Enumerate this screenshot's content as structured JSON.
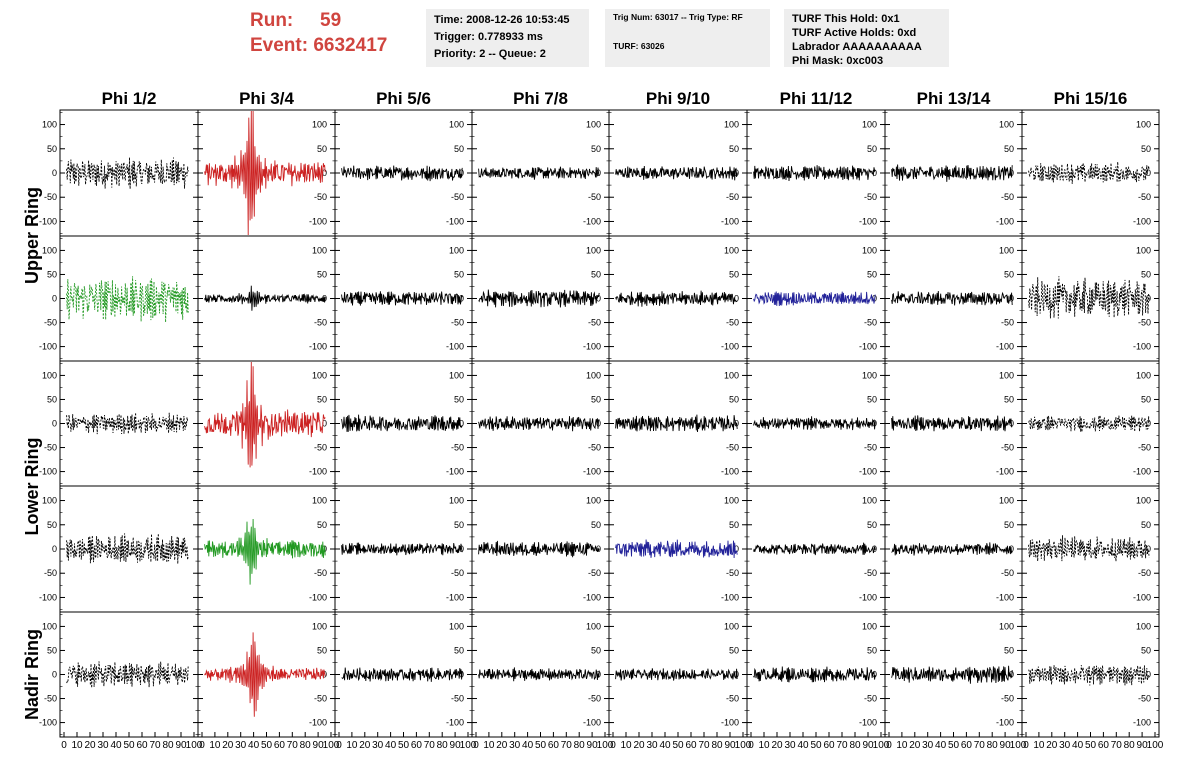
{
  "header": {
    "run_label": "Run:",
    "run_value": "59",
    "event_label": "Event:",
    "event_value": "6632417"
  },
  "info_box_1": {
    "time": "Time: 2008-12-26 10:53:45",
    "trigger": "Trigger: 0.778933 ms",
    "priority_queue": "Priority: 2 -- Queue: 2"
  },
  "info_box_2": {
    "trig": "Trig Num: 63017 -- Trig Type: RF",
    "turf": "TURF: 63026"
  },
  "info_box_3": {
    "this_hold": "TURF This Hold: 0x1",
    "active_holds": "TURF Active Holds: 0xd",
    "labrador": "Labrador AAAAAAAAAA",
    "phi_mask": "Phi Mask: 0xc003"
  },
  "chart_data": {
    "type": "line",
    "description_columns": [
      "Phi 1/2",
      "Phi 3/4",
      "Phi 5/6",
      "Phi 7/8",
      "Phi 9/10",
      "Phi 11/12",
      "Phi 13/14",
      "Phi 15/16"
    ],
    "row_groups": [
      {
        "label": "Upper Ring",
        "rows": [
          0,
          1
        ]
      },
      {
        "label": "Lower Ring",
        "rows": [
          2,
          3
        ]
      },
      {
        "label": "Nadir Ring",
        "rows": [
          4
        ]
      }
    ],
    "xlim": [
      0,
      100
    ],
    "ylim": [
      -130,
      130
    ],
    "x_ticks": [
      0,
      10,
      20,
      30,
      40,
      50,
      60,
      70,
      80,
      90,
      100
    ],
    "x_tick_labels": [
      "0",
      "10",
      "20",
      "30",
      "40",
      "50",
      "60",
      "70",
      "80",
      "90",
      "100"
    ],
    "y_ticks": [
      100,
      50,
      0,
      -50,
      -100
    ],
    "y_tick_labels": [
      "100",
      "50",
      "0",
      "-50",
      "-100"
    ],
    "colors": {
      "black": "#000000",
      "red": "#cc2222",
      "green": "#229922",
      "blue": "#222299"
    },
    "panels": [
      [
        {
          "color": "black",
          "dashed": true,
          "amp": 28,
          "pulse": 0
        },
        {
          "color": "red",
          "dashed": false,
          "amp": 22,
          "pulse": 125,
          "pulse_x": 38
        },
        {
          "color": "black",
          "dashed": false,
          "amp": 13,
          "pulse": 0
        },
        {
          "color": "black",
          "dashed": false,
          "amp": 11,
          "pulse": 0
        },
        {
          "color": "black",
          "dashed": false,
          "amp": 12,
          "pulse": 0
        },
        {
          "color": "black",
          "dashed": false,
          "amp": 13,
          "pulse": 0
        },
        {
          "color": "black",
          "dashed": false,
          "amp": 14,
          "pulse": 0
        },
        {
          "color": "black",
          "dashed": true,
          "amp": 18,
          "pulse": 0
        }
      ],
      [
        {
          "color": "green",
          "dashed": true,
          "amp": 40,
          "pulse": 0
        },
        {
          "color": "black",
          "dashed": false,
          "amp": 8,
          "pulse": 18,
          "pulse_x": 40
        },
        {
          "color": "black",
          "dashed": false,
          "amp": 13,
          "pulse": 0
        },
        {
          "color": "black",
          "dashed": false,
          "amp": 15,
          "pulse": 0
        },
        {
          "color": "black",
          "dashed": false,
          "amp": 13,
          "pulse": 0
        },
        {
          "color": "blue",
          "dashed": false,
          "amp": 12,
          "pulse": 0
        },
        {
          "color": "black",
          "dashed": false,
          "amp": 13,
          "pulse": 0
        },
        {
          "color": "black",
          "dashed": true,
          "amp": 35,
          "pulse": 0
        }
      ],
      [
        {
          "color": "black",
          "dashed": true,
          "amp": 18,
          "pulse": 0
        },
        {
          "color": "red",
          "dashed": false,
          "amp": 24,
          "pulse": 88,
          "pulse_x": 38
        },
        {
          "color": "black",
          "dashed": false,
          "amp": 15,
          "pulse": 0
        },
        {
          "color": "black",
          "dashed": false,
          "amp": 13,
          "pulse": 0
        },
        {
          "color": "black",
          "dashed": false,
          "amp": 14,
          "pulse": 0
        },
        {
          "color": "black",
          "dashed": false,
          "amp": 11,
          "pulse": 0
        },
        {
          "color": "black",
          "dashed": false,
          "amp": 13,
          "pulse": 0
        },
        {
          "color": "black",
          "dashed": true,
          "amp": 14,
          "pulse": 0
        }
      ],
      [
        {
          "color": "black",
          "dashed": true,
          "amp": 25,
          "pulse": 0
        },
        {
          "color": "green",
          "dashed": false,
          "amp": 15,
          "pulse": 55,
          "pulse_x": 38
        },
        {
          "color": "black",
          "dashed": false,
          "amp": 10,
          "pulse": 0
        },
        {
          "color": "black",
          "dashed": false,
          "amp": 13,
          "pulse": 0
        },
        {
          "color": "blue",
          "dashed": false,
          "amp": 16,
          "pulse": 0
        },
        {
          "color": "black",
          "dashed": false,
          "amp": 10,
          "pulse": 0
        },
        {
          "color": "black",
          "dashed": false,
          "amp": 11,
          "pulse": 0
        },
        {
          "color": "black",
          "dashed": true,
          "amp": 22,
          "pulse": 0
        }
      ],
      [
        {
          "color": "black",
          "dashed": true,
          "amp": 24,
          "pulse": 0
        },
        {
          "color": "red",
          "dashed": false,
          "amp": 12,
          "pulse": 70,
          "pulse_x": 40
        },
        {
          "color": "black",
          "dashed": false,
          "amp": 12,
          "pulse": 0
        },
        {
          "color": "black",
          "dashed": false,
          "amp": 11,
          "pulse": 0
        },
        {
          "color": "black",
          "dashed": false,
          "amp": 10,
          "pulse": 0
        },
        {
          "color": "black",
          "dashed": false,
          "amp": 13,
          "pulse": 0
        },
        {
          "color": "black",
          "dashed": false,
          "amp": 15,
          "pulse": 0
        },
        {
          "color": "black",
          "dashed": true,
          "amp": 18,
          "pulse": 0
        }
      ]
    ]
  }
}
